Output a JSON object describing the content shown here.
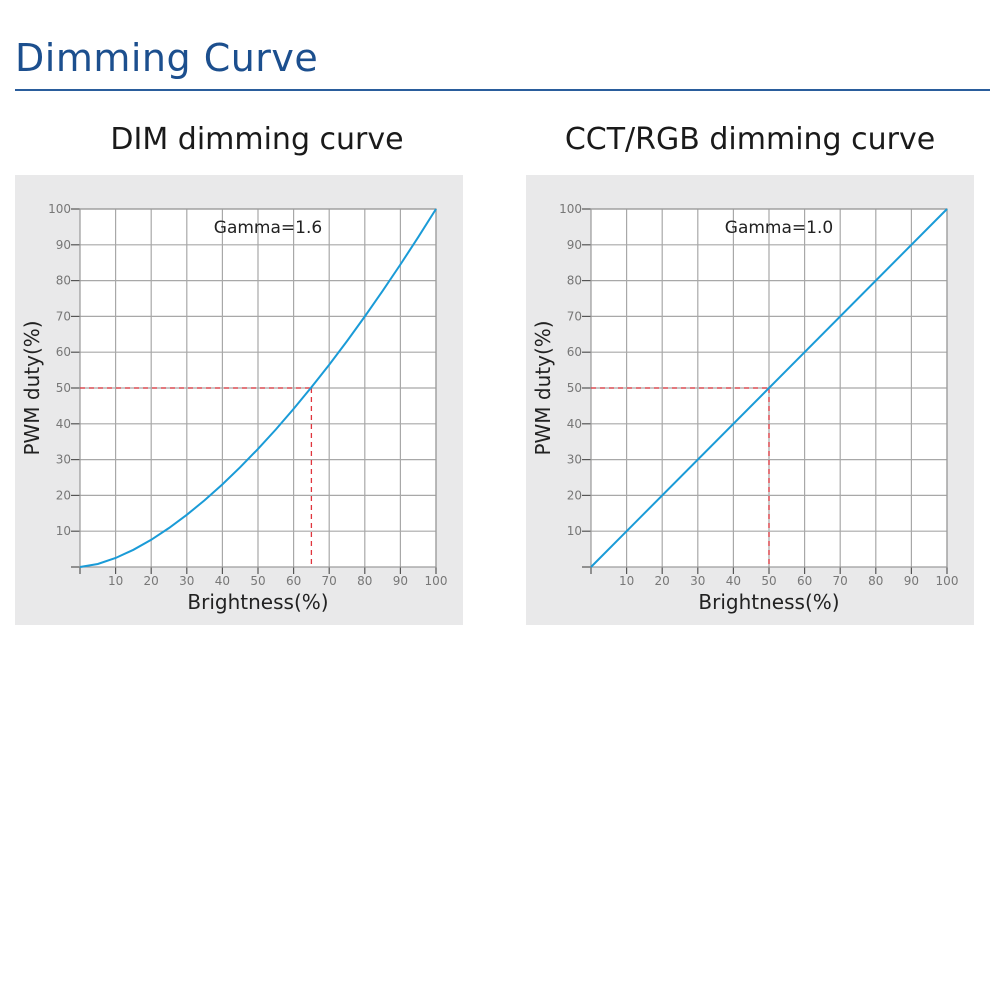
{
  "page": {
    "title": "Dimming Curve"
  },
  "colors": {
    "title": "#1c4f8e",
    "curve": "#1a9bd7",
    "guide": "#e0353d",
    "grid": "#a8a8a8",
    "panel": "#e9e9ea"
  },
  "chart_data": [
    {
      "type": "line",
      "title": "DIM dimming curve",
      "annotation": "Gamma=1.6",
      "xlabel": "Brightness(%)",
      "ylabel": "PWM duty(%)",
      "xlim": [
        0,
        100
      ],
      "ylim": [
        0,
        100
      ],
      "grid": true,
      "xticks": [
        "10",
        "20",
        "30",
        "40",
        "50",
        "60",
        "70",
        "80",
        "90",
        "100"
      ],
      "yticks": [
        "10",
        "20",
        "30",
        "40",
        "50",
        "60",
        "70",
        "80",
        "90",
        "100"
      ],
      "series": [
        {
          "name": "Gamma 1.6",
          "x": [
            0,
            5,
            10,
            15,
            20,
            25,
            30,
            35,
            40,
            45,
            50,
            55,
            60,
            65,
            70,
            75,
            80,
            85,
            90,
            95,
            100
          ],
          "y": [
            0,
            0.83,
            2.51,
            4.81,
            7.61,
            10.88,
            14.57,
            18.64,
            23.08,
            27.87,
            32.99,
            38.42,
            44.16,
            50.2,
            56.51,
            63.11,
            69.98,
            77.11,
            84.49,
            92.12,
            100
          ]
        }
      ],
      "reference": {
        "x": 65,
        "y": 50
      }
    },
    {
      "type": "line",
      "title": "CCT/RGB dimming curve",
      "annotation": "Gamma=1.0",
      "xlabel": "Brightness(%)",
      "ylabel": "PWM duty(%)",
      "xlim": [
        0,
        100
      ],
      "ylim": [
        0,
        100
      ],
      "grid": true,
      "xticks": [
        "10",
        "20",
        "30",
        "40",
        "50",
        "60",
        "70",
        "80",
        "90",
        "100"
      ],
      "yticks": [
        "10",
        "20",
        "30",
        "40",
        "50",
        "60",
        "70",
        "80",
        "90",
        "100"
      ],
      "series": [
        {
          "name": "Gamma 1.0",
          "x": [
            0,
            100
          ],
          "y": [
            0,
            100
          ]
        }
      ],
      "reference": {
        "x": 50,
        "y": 50
      }
    }
  ]
}
